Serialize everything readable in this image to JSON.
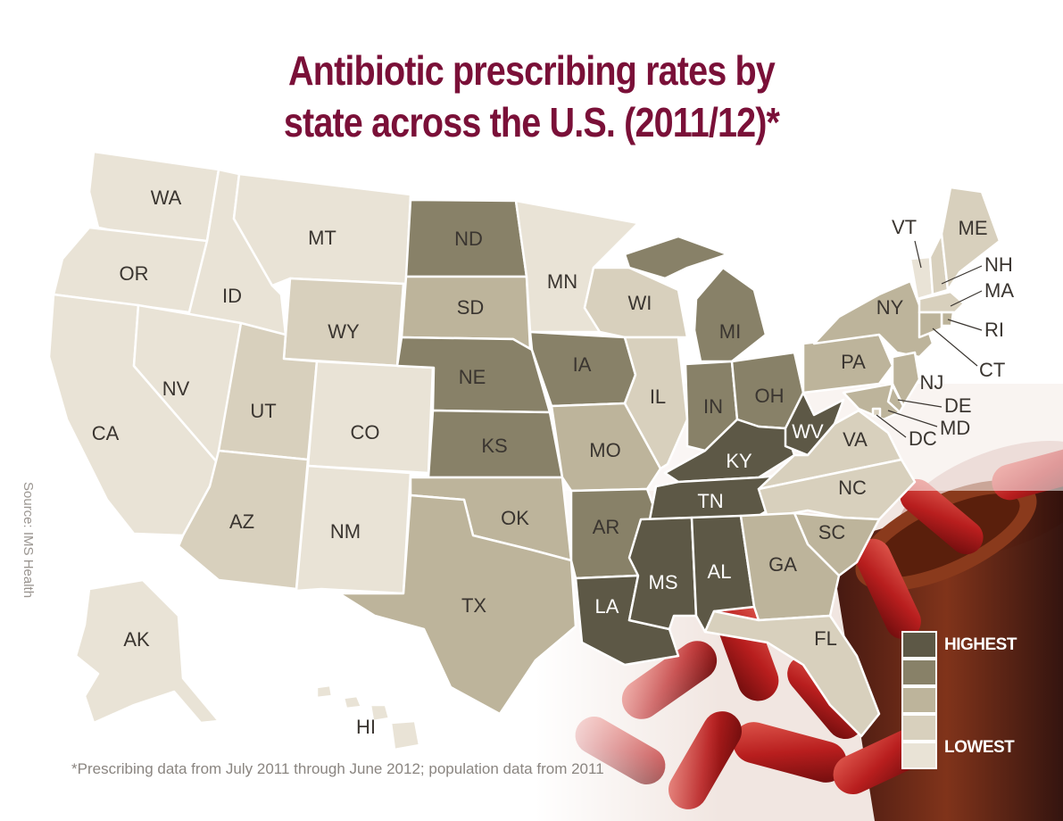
{
  "title": {
    "line1": "Antibiotic prescribing rates by",
    "line2": "state across the U.S. (2011/12)*"
  },
  "source": "Source: IMS Health",
  "footnote": "*Prescribing data from July 2011 through June 2012; population data from 2011",
  "legend": {
    "high_label": "HIGHEST",
    "low_label": "LOWEST",
    "levels": [
      5,
      4,
      3,
      2,
      1
    ]
  },
  "colors": {
    "level_1": "#e9e3d6",
    "level_2": "#d8d0bd",
    "level_3": "#bdb49b",
    "level_4": "#888168",
    "level_5": "#5d5846",
    "title": "#7a1038",
    "pill_red": "#b81e1e"
  },
  "states": [
    {
      "code": "WA",
      "level": 1
    },
    {
      "code": "OR",
      "level": 1
    },
    {
      "code": "CA",
      "level": 1
    },
    {
      "code": "ID",
      "level": 1
    },
    {
      "code": "NV",
      "level": 1
    },
    {
      "code": "MT",
      "level": 1
    },
    {
      "code": "WY",
      "level": 2
    },
    {
      "code": "UT",
      "level": 2
    },
    {
      "code": "AZ",
      "level": 2
    },
    {
      "code": "CO",
      "level": 1
    },
    {
      "code": "NM",
      "level": 1
    },
    {
      "code": "ND",
      "level": 4
    },
    {
      "code": "SD",
      "level": 3
    },
    {
      "code": "NE",
      "level": 4
    },
    {
      "code": "KS",
      "level": 4
    },
    {
      "code": "OK",
      "level": 3
    },
    {
      "code": "TX",
      "level": 3
    },
    {
      "code": "MN",
      "level": 1
    },
    {
      "code": "IA",
      "level": 4
    },
    {
      "code": "MO",
      "level": 3
    },
    {
      "code": "AR",
      "level": 4
    },
    {
      "code": "LA",
      "level": 5
    },
    {
      "code": "WI",
      "level": 2
    },
    {
      "code": "IL",
      "level": 2
    },
    {
      "code": "MI",
      "level": 4
    },
    {
      "code": "IN",
      "level": 4
    },
    {
      "code": "OH",
      "level": 4
    },
    {
      "code": "KY",
      "level": 5
    },
    {
      "code": "TN",
      "level": 5
    },
    {
      "code": "MS",
      "level": 5
    },
    {
      "code": "AL",
      "level": 5
    },
    {
      "code": "WV",
      "level": 5
    },
    {
      "code": "VA",
      "level": 2
    },
    {
      "code": "NC",
      "level": 2
    },
    {
      "code": "SC",
      "level": 3
    },
    {
      "code": "GA",
      "level": 3
    },
    {
      "code": "FL",
      "level": 2
    },
    {
      "code": "PA",
      "level": 3
    },
    {
      "code": "NY",
      "level": 3
    },
    {
      "code": "VT",
      "level": 1
    },
    {
      "code": "ME",
      "level": 2
    },
    {
      "code": "NH",
      "level": 2
    },
    {
      "code": "MA",
      "level": 2
    },
    {
      "code": "RI",
      "level": 3
    },
    {
      "code": "CT",
      "level": 3
    },
    {
      "code": "NJ",
      "level": 3
    },
    {
      "code": "DE",
      "level": 3
    },
    {
      "code": "MD",
      "level": 3
    },
    {
      "code": "DC",
      "level": 2
    },
    {
      "code": "AK",
      "level": 1
    },
    {
      "code": "HI",
      "level": 1
    }
  ]
}
